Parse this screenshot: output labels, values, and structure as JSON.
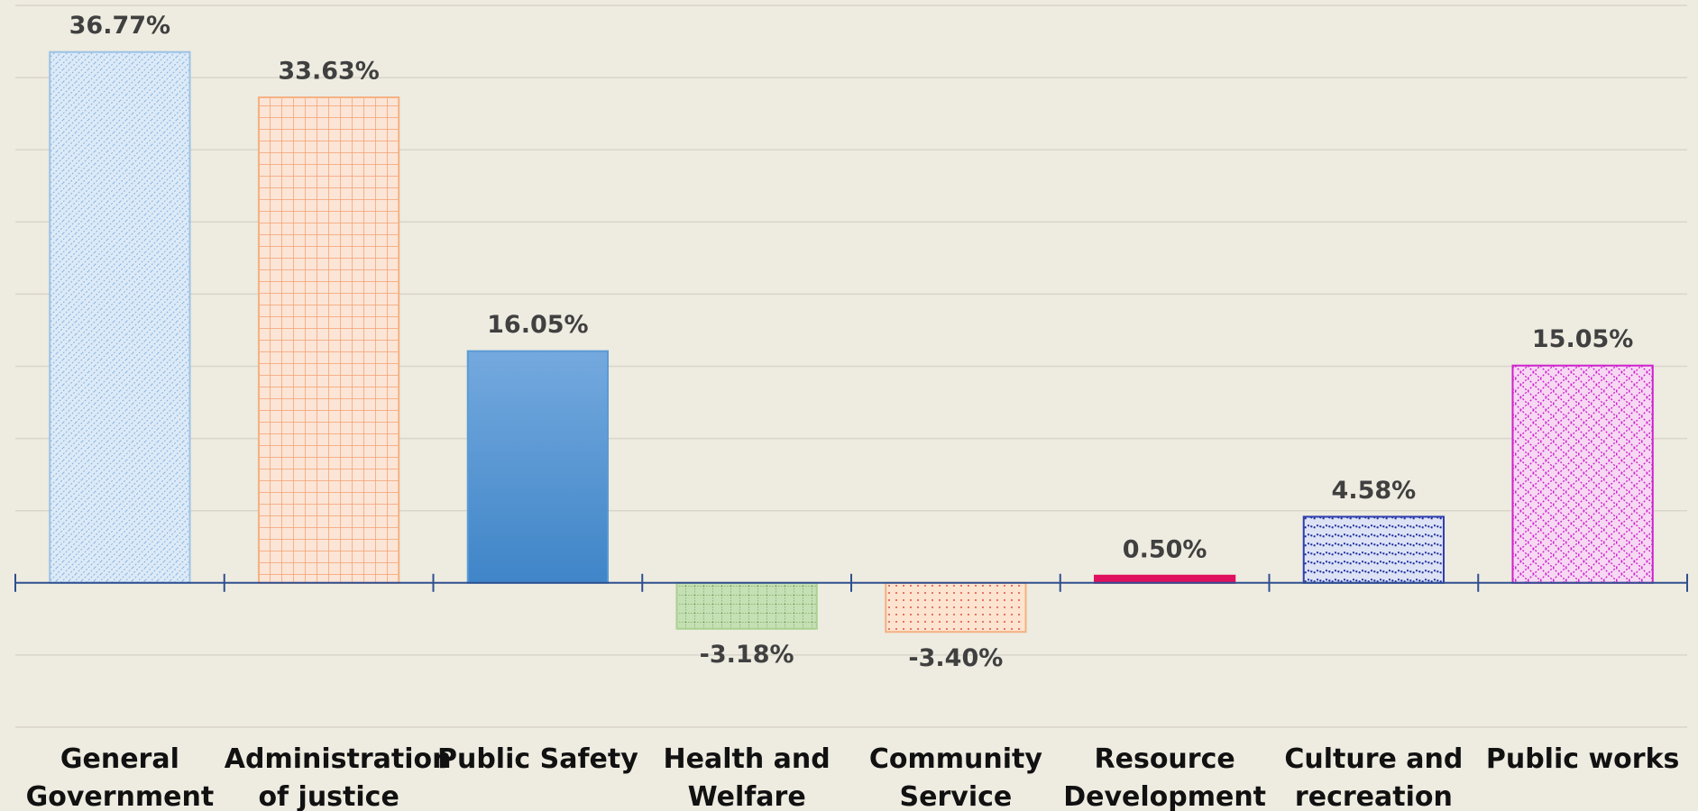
{
  "chart_data": {
    "type": "bar",
    "categories": [
      "General Government",
      "Administration of justice",
      "Public Safety",
      "Health and Welfare",
      "Community Service",
      "Resource Development",
      "Culture and recreation",
      "Public works"
    ],
    "values": [
      36.77,
      33.63,
      16.05,
      -3.18,
      -3.4,
      0.5,
      4.58,
      15.05
    ],
    "value_labels": [
      "36.77%",
      "33.63%",
      "16.05%",
      "-3.18%",
      "-3.40%",
      "0.50%",
      "4.58%",
      "15.05%"
    ],
    "colors": [
      "#9dc3e6",
      "#f4b183",
      "#5b9bd5",
      "#a9d18e",
      "#f4b183",
      "#e0105f",
      "#2f3fae",
      "#cc22cc"
    ],
    "ylim": [
      -10,
      40
    ],
    "yticks": [
      -10,
      -5,
      0,
      5,
      10,
      15,
      20,
      25,
      30,
      35,
      40
    ],
    "grid": true
  }
}
